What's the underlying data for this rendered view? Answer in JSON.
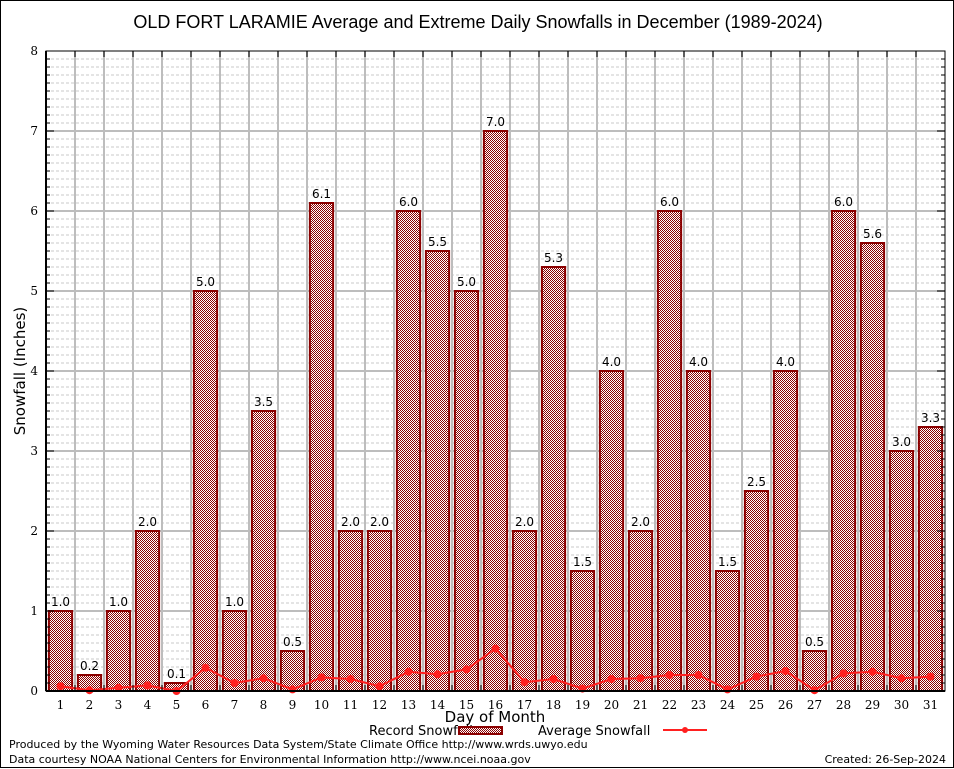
{
  "chart_data": {
    "type": "bar",
    "title": "OLD FORT LARAMIE Average and Extreme Daily Snowfalls in December (1989-2024)",
    "xlabel": "Day of Month",
    "ylabel": "Snowfall (Inches)",
    "ylim": [
      0,
      8
    ],
    "yticks": [
      "0",
      "1",
      "2",
      "3",
      "4",
      "5",
      "6",
      "7",
      "8"
    ],
    "grid": true,
    "categories": [
      "1",
      "2",
      "3",
      "4",
      "5",
      "6",
      "7",
      "8",
      "9",
      "10",
      "11",
      "12",
      "13",
      "14",
      "15",
      "16",
      "17",
      "18",
      "19",
      "20",
      "21",
      "22",
      "23",
      "24",
      "25",
      "26",
      "27",
      "28",
      "29",
      "30",
      "31"
    ],
    "series": [
      {
        "name": "Record Snowfall",
        "type": "bar",
        "color": "#8b0000",
        "values": [
          1.0,
          0.2,
          1.0,
          2.0,
          0.1,
          5.0,
          1.0,
          3.5,
          0.5,
          6.1,
          2.0,
          2.0,
          6.0,
          5.5,
          5.0,
          7.0,
          2.0,
          5.3,
          1.5,
          4.0,
          2.0,
          6.0,
          4.0,
          1.5,
          2.5,
          4.0,
          0.5,
          6.0,
          5.6,
          3.0,
          3.3
        ],
        "labels": [
          "1.0",
          "0.2",
          "1.0",
          "2.0",
          "0.1",
          "5.0",
          "1.0",
          "3.5",
          "0.5",
          "6.1",
          "2.0",
          "2.0",
          "6.0",
          "5.5",
          "5.0",
          "7.0",
          "2.0",
          "5.3",
          "1.5",
          "4.0",
          "2.0",
          "6.0",
          "4.0",
          "1.5",
          "2.5",
          "4.0",
          "0.5",
          "6.0",
          "5.6",
          "3.0",
          "3.3"
        ]
      },
      {
        "name": "Average Snowfall",
        "type": "line",
        "color": "#ff2020",
        "values": [
          0.06,
          0.01,
          0.04,
          0.07,
          0.0,
          0.29,
          0.1,
          0.16,
          0.02,
          0.17,
          0.15,
          0.06,
          0.24,
          0.21,
          0.27,
          0.53,
          0.11,
          0.15,
          0.03,
          0.15,
          0.16,
          0.2,
          0.2,
          0.02,
          0.18,
          0.25,
          0.01,
          0.22,
          0.24,
          0.16,
          0.18
        ]
      }
    ],
    "legend": {
      "placement": "bottom-center",
      "entries": [
        "Record Snowfall",
        "Average Snowfall"
      ]
    }
  },
  "footer": {
    "line1": "Produced by the Wyoming Water Resources Data System/State Climate Office http://www.wrds.uwyo.edu",
    "line2": "Data courtesy NOAA National Centers for Environmental Information http://www.ncei.noaa.gov",
    "created": "Created: 26-Sep-2024"
  }
}
